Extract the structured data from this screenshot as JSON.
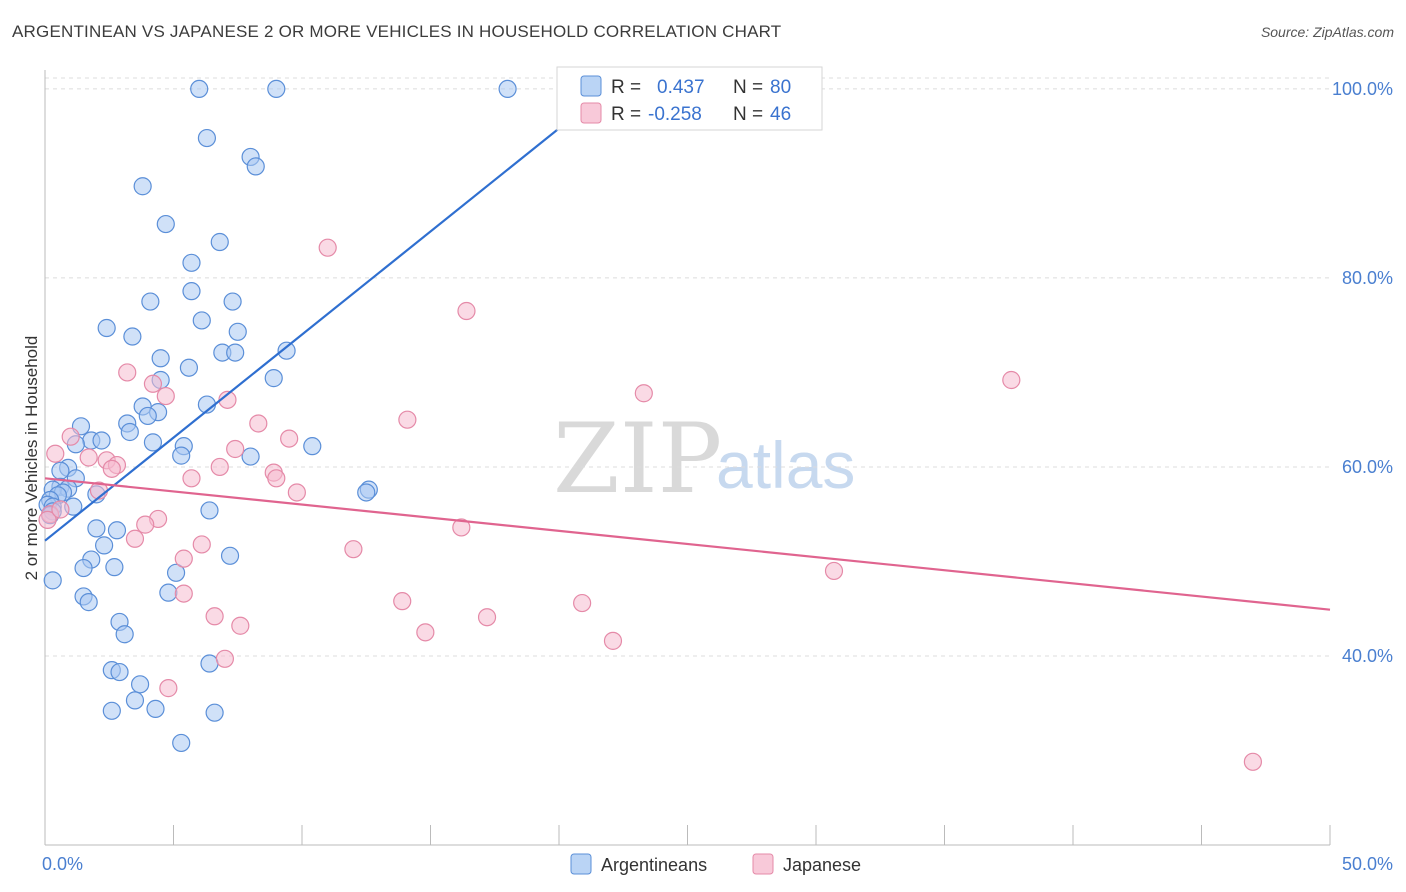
{
  "header": {
    "title": "ARGENTINEAN VS JAPANESE 2 OR MORE VEHICLES IN HOUSEHOLD CORRELATION CHART",
    "source": "Source: ZipAtlas.com"
  },
  "watermark": {
    "zip": "ZIP",
    "atlas": "atlas"
  },
  "colors": {
    "argentineans_fill": "#a9c9f2",
    "argentineans_stroke": "#5b8fd8",
    "argentineans_line": "#2f6fd0",
    "japanese_fill": "#f6bccf",
    "japanese_stroke": "#e58aa8",
    "japanese_line": "#e0648f",
    "tick": "#4a7fd0"
  },
  "legend": {
    "rows": [
      {
        "r_label": "R =",
        "r_value": "0.437",
        "n_label": "N =",
        "n_value": "80",
        "series": "argentineans"
      },
      {
        "r_label": "R =",
        "r_value": "-0.258",
        "n_label": "N =",
        "n_value": "46",
        "series": "japanese"
      }
    ]
  },
  "bottom_legend": {
    "items": [
      "Argentineans",
      "Japanese"
    ]
  },
  "chart_data": {
    "type": "scatter",
    "title": "ARGENTINEAN VS JAPANESE 2 OR MORE VEHICLES IN HOUSEHOLD CORRELATION CHART",
    "xlabel": "",
    "ylabel": "2 or more Vehicles in Household",
    "xlim": [
      0,
      50
    ],
    "ylim": [
      20,
      102
    ],
    "x_tick_labels": [
      {
        "value": 0,
        "label": "0.0%"
      },
      {
        "value": 50,
        "label": "50.0%"
      }
    ],
    "y_tick_labels": [
      {
        "value": 40,
        "label": "40.0%"
      },
      {
        "value": 60,
        "label": "60.0%"
      },
      {
        "value": 80,
        "label": "80.0%"
      },
      {
        "value": 100,
        "label": "100.0%"
      }
    ],
    "x_minor_ticks": [
      0,
      5,
      10,
      15,
      20,
      25,
      30,
      35,
      40,
      45,
      50
    ],
    "grid": true,
    "series": [
      {
        "name": "Argentineans",
        "key": "argentineans",
        "R": 0.437,
        "N": 80,
        "trendline": {
          "x": [
            0,
            21.0
          ],
          "y": [
            52.2,
            98.0
          ]
        },
        "points": [
          [
            6.0,
            100
          ],
          [
            9.0,
            100
          ],
          [
            18.0,
            100
          ],
          [
            6.3,
            94.8
          ],
          [
            8.0,
            92.8
          ],
          [
            8.2,
            91.8
          ],
          [
            3.8,
            89.7
          ],
          [
            4.7,
            85.7
          ],
          [
            5.7,
            81.6
          ],
          [
            6.8,
            83.8
          ],
          [
            4.1,
            77.5
          ],
          [
            5.7,
            78.6
          ],
          [
            7.3,
            77.5
          ],
          [
            6.1,
            75.5
          ],
          [
            2.4,
            74.7
          ],
          [
            3.4,
            73.8
          ],
          [
            7.5,
            74.3
          ],
          [
            9.4,
            72.3
          ],
          [
            6.9,
            72.1
          ],
          [
            7.4,
            72.1
          ],
          [
            4.5,
            71.5
          ],
          [
            5.6,
            70.5
          ],
          [
            8.9,
            69.4
          ],
          [
            4.5,
            69.2
          ],
          [
            6.3,
            66.6
          ],
          [
            3.8,
            66.4
          ],
          [
            4.4,
            65.8
          ],
          [
            4.0,
            65.4
          ],
          [
            3.2,
            64.6
          ],
          [
            1.4,
            64.3
          ],
          [
            3.3,
            63.7
          ],
          [
            4.2,
            62.6
          ],
          [
            1.8,
            62.8
          ],
          [
            2.2,
            62.8
          ],
          [
            5.4,
            62.2
          ],
          [
            10.4,
            62.2
          ],
          [
            1.2,
            62.4
          ],
          [
            5.3,
            61.2
          ],
          [
            8.0,
            61.1
          ],
          [
            0.9,
            59.9
          ],
          [
            0.6,
            59.6
          ],
          [
            1.2,
            58.8
          ],
          [
            0.6,
            57.9
          ],
          [
            0.9,
            57.7
          ],
          [
            0.3,
            57.6
          ],
          [
            0.7,
            57.3
          ],
          [
            0.5,
            57.0
          ],
          [
            2.0,
            57.1
          ],
          [
            12.6,
            57.6
          ],
          [
            12.5,
            57.3
          ],
          [
            0.2,
            56.5
          ],
          [
            0.1,
            56.0
          ],
          [
            0.3,
            55.8
          ],
          [
            1.1,
            55.8
          ],
          [
            0.3,
            55.3
          ],
          [
            0.2,
            54.9
          ],
          [
            6.4,
            55.4
          ],
          [
            2.0,
            53.5
          ],
          [
            2.8,
            53.3
          ],
          [
            2.3,
            51.7
          ],
          [
            7.2,
            50.6
          ],
          [
            1.8,
            50.2
          ],
          [
            1.5,
            49.3
          ],
          [
            2.7,
            49.4
          ],
          [
            5.1,
            48.8
          ],
          [
            0.3,
            48.0
          ],
          [
            1.5,
            46.3
          ],
          [
            1.7,
            45.7
          ],
          [
            4.8,
            46.7
          ],
          [
            2.9,
            43.6
          ],
          [
            3.1,
            42.3
          ],
          [
            6.4,
            39.2
          ],
          [
            2.6,
            38.5
          ],
          [
            2.9,
            38.3
          ],
          [
            3.7,
            37.0
          ],
          [
            2.6,
            34.2
          ],
          [
            3.5,
            35.3
          ],
          [
            4.3,
            34.4
          ],
          [
            6.6,
            34.0
          ],
          [
            5.3,
            30.8
          ]
        ]
      },
      {
        "name": "Japanese",
        "key": "japanese",
        "R": -0.258,
        "N": 46,
        "trendline": {
          "x": [
            0,
            50
          ],
          "y": [
            58.8,
            44.9
          ]
        },
        "points": [
          [
            11.0,
            83.2
          ],
          [
            16.4,
            76.5
          ],
          [
            37.6,
            69.2
          ],
          [
            23.3,
            67.8
          ],
          [
            3.2,
            70.0
          ],
          [
            4.2,
            68.8
          ],
          [
            4.7,
            67.5
          ],
          [
            7.1,
            67.1
          ],
          [
            8.3,
            64.6
          ],
          [
            14.1,
            65.0
          ],
          [
            1.0,
            63.2
          ],
          [
            9.5,
            63.0
          ],
          [
            0.4,
            61.4
          ],
          [
            1.7,
            61.0
          ],
          [
            7.4,
            61.9
          ],
          [
            2.4,
            60.7
          ],
          [
            2.8,
            60.2
          ],
          [
            2.6,
            59.8
          ],
          [
            8.9,
            59.4
          ],
          [
            5.7,
            58.8
          ],
          [
            9.0,
            58.8
          ],
          [
            2.1,
            57.5
          ],
          [
            9.8,
            57.3
          ],
          [
            0.2,
            55.0
          ],
          [
            0.1,
            54.4
          ],
          [
            4.4,
            54.5
          ],
          [
            3.9,
            53.9
          ],
          [
            16.2,
            53.6
          ],
          [
            3.5,
            52.4
          ],
          [
            6.1,
            51.8
          ],
          [
            12.0,
            51.3
          ],
          [
            5.4,
            50.3
          ],
          [
            30.7,
            49.0
          ],
          [
            5.4,
            46.6
          ],
          [
            13.9,
            45.8
          ],
          [
            20.9,
            45.6
          ],
          [
            6.6,
            44.2
          ],
          [
            17.2,
            44.1
          ],
          [
            7.6,
            43.2
          ],
          [
            14.8,
            42.5
          ],
          [
            22.1,
            41.6
          ],
          [
            7.0,
            39.7
          ],
          [
            4.8,
            36.6
          ],
          [
            47.0,
            28.8
          ],
          [
            0.6,
            55.5
          ],
          [
            6.8,
            60.0
          ]
        ]
      }
    ]
  }
}
